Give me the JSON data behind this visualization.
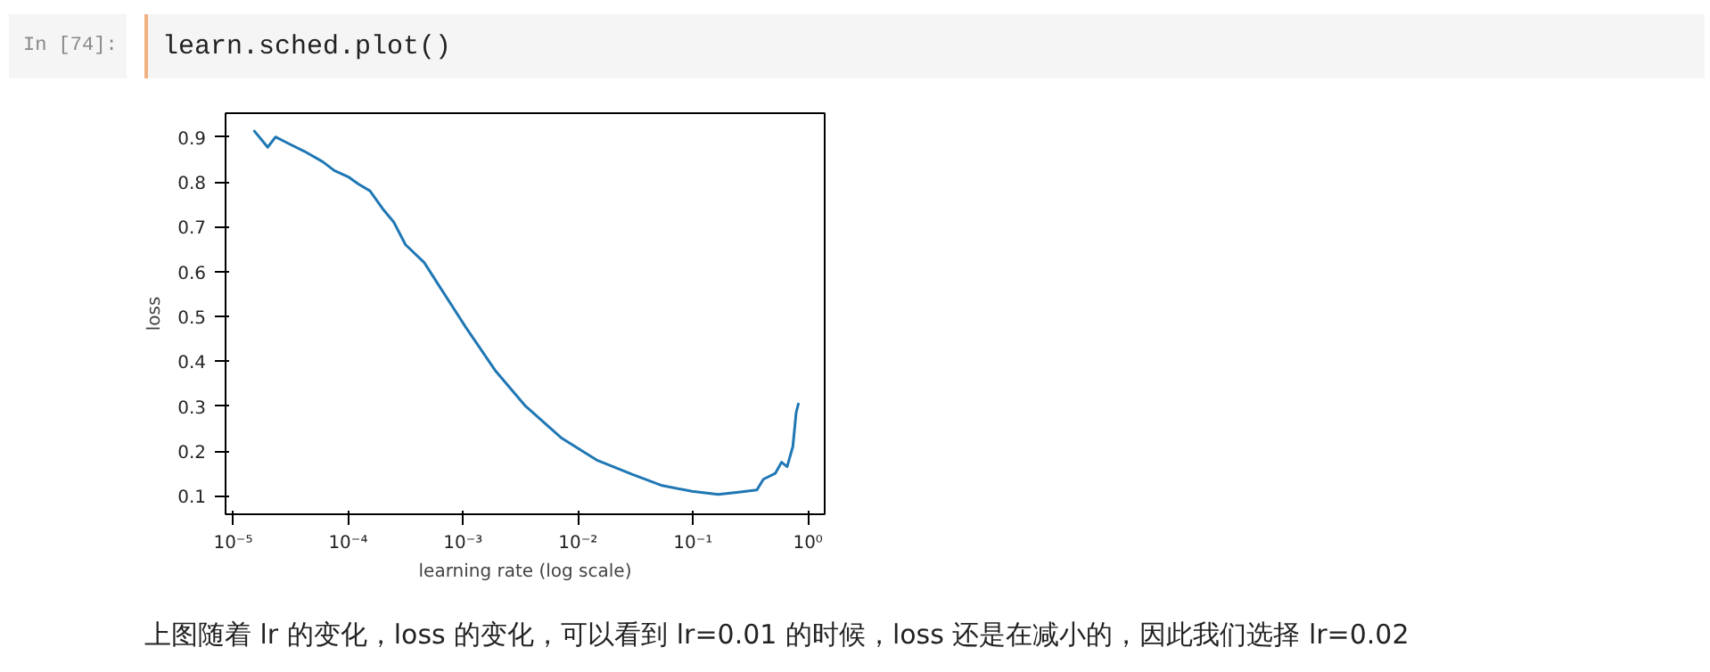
{
  "chart_data": {
    "type": "line",
    "xlabel": "learning rate (log scale)",
    "ylabel": "loss",
    "log": "x",
    "grid": false,
    "xlim": [
      8.6e-06,
      1.4
    ],
    "ylim": [
      0.059,
      0.953
    ],
    "xticks": [
      {
        "value": 1e-05,
        "label": "10⁻⁵"
      },
      {
        "value": 0.0001,
        "label": "10⁻⁴"
      },
      {
        "value": 0.001,
        "label": "10⁻³"
      },
      {
        "value": 0.01,
        "label": "10⁻²"
      },
      {
        "value": 0.1,
        "label": "10⁻¹"
      },
      {
        "value": 1,
        "label": "10⁰"
      }
    ],
    "yticks": [
      0.1,
      0.2,
      0.3,
      0.4,
      0.5,
      0.6,
      0.7,
      0.8,
      0.9
    ],
    "annotations": [
      "In [74]:",
      "learn.sched.plot()",
      "上图随着 lr 的变化，loss 的变化，可以看到 lr=0.01 的时候，loss 还是在减小的，因此我们选择 lr=0.02"
    ],
    "series": [
      {
        "color": "#1f77b4",
        "x": [
          1.51e-05,
          1.82e-05,
          2e-05,
          2.34e-05,
          2.95e-05,
          4.17e-05,
          6e-05,
          7.6e-05,
          0.000102,
          0.000123,
          0.000155,
          0.0002,
          0.00025,
          0.000316,
          0.00046,
          0.00065,
          0.00105,
          0.0019,
          0.0035,
          0.0071,
          0.0145,
          0.0295,
          0.054,
          0.098,
          0.166,
          0.25,
          0.36,
          0.41,
          0.52,
          0.59,
          0.66,
          0.74,
          0.79,
          0.83
        ],
        "values": [
          0.915,
          0.89,
          0.877,
          0.9,
          0.887,
          0.868,
          0.845,
          0.825,
          0.81,
          0.795,
          0.78,
          0.74,
          0.71,
          0.66,
          0.62,
          0.56,
          0.477,
          0.38,
          0.3,
          0.23,
          0.18,
          0.148,
          0.123,
          0.11,
          0.103,
          0.108,
          0.113,
          0.137,
          0.15,
          0.175,
          0.165,
          0.21,
          0.285,
          0.307
        ]
      }
    ]
  }
}
